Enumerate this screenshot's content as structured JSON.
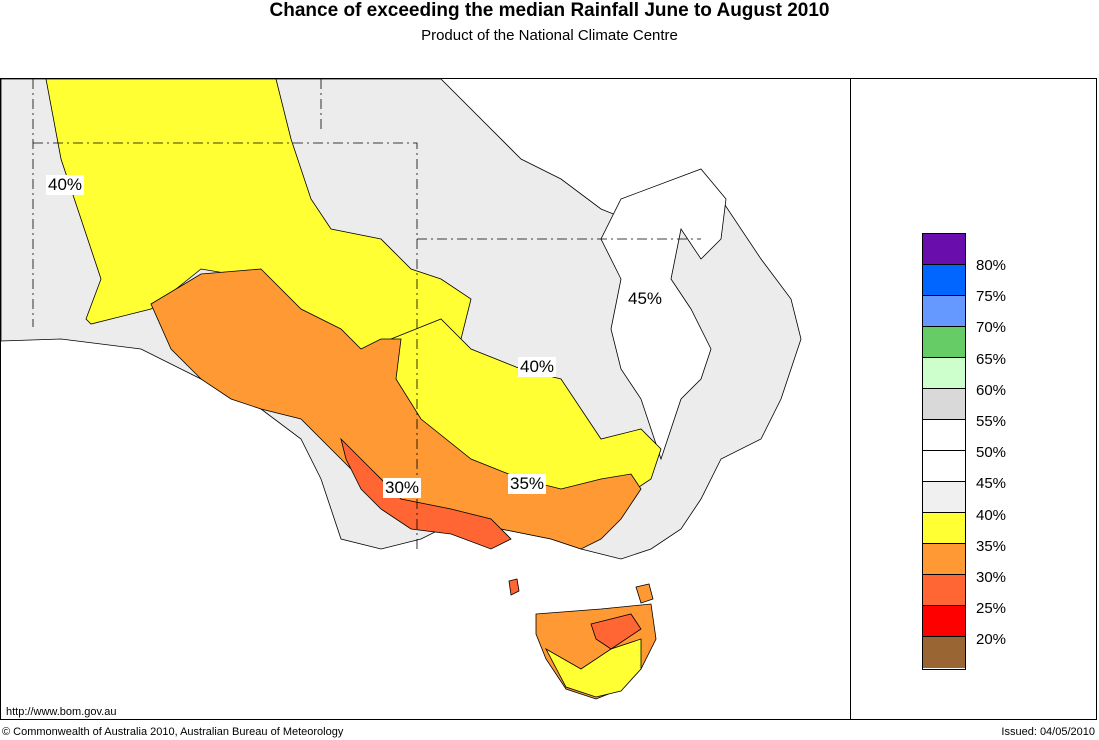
{
  "title": "Chance of exceeding the median Rainfall June to August 2010",
  "subtitle": "Product of the National Climate Centre",
  "url": "http://www.bom.gov.au",
  "copyright": "© Commonwealth of Australia 2010, Australian Bureau of Meteorology",
  "issued": "Issued: 04/05/2010",
  "legend": [
    {
      "label": "80%",
      "color": "#6a0dad"
    },
    {
      "label": "75%",
      "color": "#0066ff"
    },
    {
      "label": "70%",
      "color": "#6699ff"
    },
    {
      "label": "65%",
      "color": "#66cc66"
    },
    {
      "label": "60%",
      "color": "#ccffcc"
    },
    {
      "label": "55%",
      "color": "#d9d9d9"
    },
    {
      "label": "50%",
      "color": "#ffffff"
    },
    {
      "label": "45%",
      "color": "#ffffff"
    },
    {
      "label": "40%",
      "color": "#f0f0f0"
    },
    {
      "label": "35%",
      "color": "#ffff33"
    },
    {
      "label": "30%",
      "color": "#ff9933"
    },
    {
      "label": "25%",
      "color": "#ff6633"
    },
    {
      "label": "20%",
      "color": "#ff0000"
    },
    {
      "label": "",
      "color": "#996633"
    }
  ],
  "map_labels": {
    "west_40": "40%",
    "north_45": "45%",
    "central_40": "40%",
    "south_35": "35%",
    "southwest_30": "30%"
  },
  "region_colors": {
    "background_grey": "#ececec",
    "yellow": "#ffff33",
    "orange": "#ff9933",
    "dark_orange": "#ff6633",
    "white": "#ffffff",
    "light_grey": "#e6e6e6",
    "sea": "#ffffff"
  }
}
